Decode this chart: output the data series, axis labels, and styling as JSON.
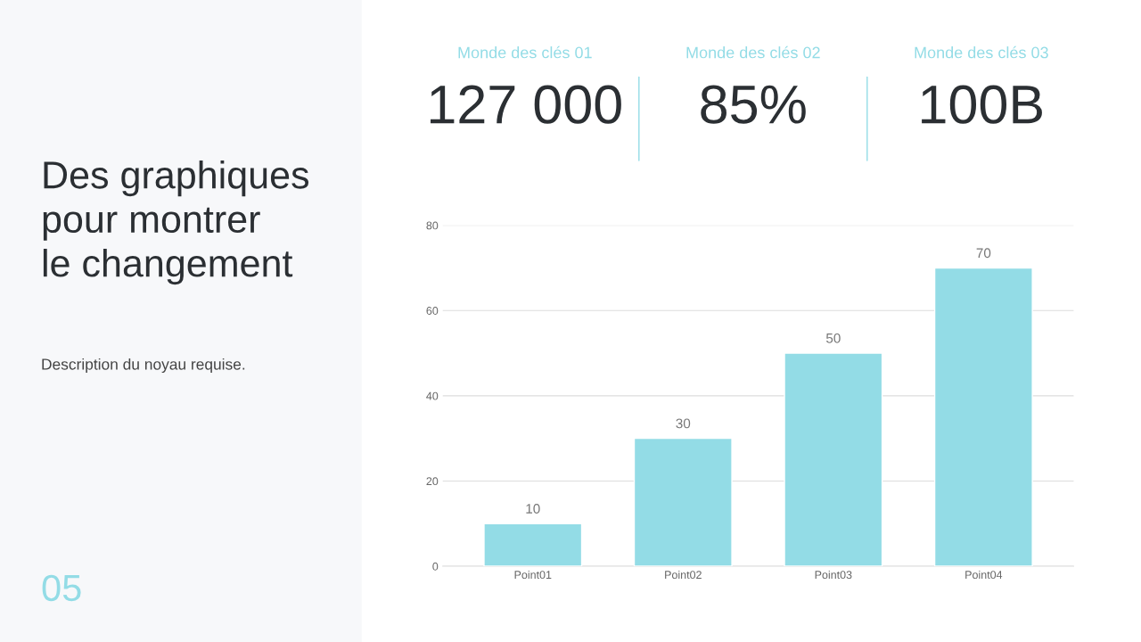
{
  "chart_data": [
    {
      "type": "other",
      "annotations": [
        "Des graphiques\npour montrer\nle changement",
        "Description du noyau requise.",
        "05"
      ],
      "color": "#93dce6"
    },
    {
      "type": "other",
      "annotations": [
        "Monde des clés 01",
        "127 000",
        "Monde des clés 02",
        "85%",
        "Monde des clés 03",
        "100B"
      ],
      "color": "#93dce6"
    },
    {
      "type": "bar",
      "categories": [
        "Point01",
        "Point02",
        "Point03",
        "Point04"
      ],
      "values": [
        10,
        30,
        50,
        70
      ],
      "color": "#93dce6",
      "ylim": [
        0,
        80
      ],
      "yticks": [
        0,
        20,
        40,
        60,
        80
      ],
      "grid": "y",
      "data_labels": true
    }
  ]
}
